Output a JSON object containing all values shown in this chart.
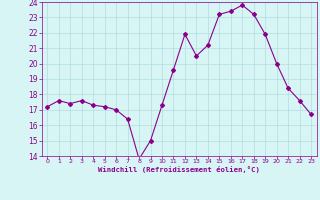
{
  "x": [
    0,
    1,
    2,
    3,
    4,
    5,
    6,
    7,
    8,
    9,
    10,
    11,
    12,
    13,
    14,
    15,
    16,
    17,
    18,
    19,
    20,
    21,
    22,
    23
  ],
  "y": [
    17.2,
    17.6,
    17.4,
    17.6,
    17.3,
    17.2,
    17.0,
    16.4,
    13.8,
    15.0,
    17.3,
    19.6,
    21.9,
    20.5,
    21.2,
    23.2,
    23.4,
    23.8,
    23.2,
    21.9,
    20.0,
    18.4,
    17.6,
    16.7
  ],
  "line_color": "#8B008B",
  "marker": "D",
  "marker_size": 2,
  "bg_color": "#d8f5f5",
  "grid_color": "#b0dede",
  "xlabel": "Windchill (Refroidissement éolien,°C)",
  "xlabel_color": "#8B008B",
  "tick_color": "#8B008B",
  "ylim": [
    14,
    24
  ],
  "xlim": [
    -0.5,
    23.5
  ],
  "yticks": [
    14,
    15,
    16,
    17,
    18,
    19,
    20,
    21,
    22,
    23,
    24
  ],
  "xticks": [
    0,
    1,
    2,
    3,
    4,
    5,
    6,
    7,
    8,
    9,
    10,
    11,
    12,
    13,
    14,
    15,
    16,
    17,
    18,
    19,
    20,
    21,
    22,
    23
  ]
}
